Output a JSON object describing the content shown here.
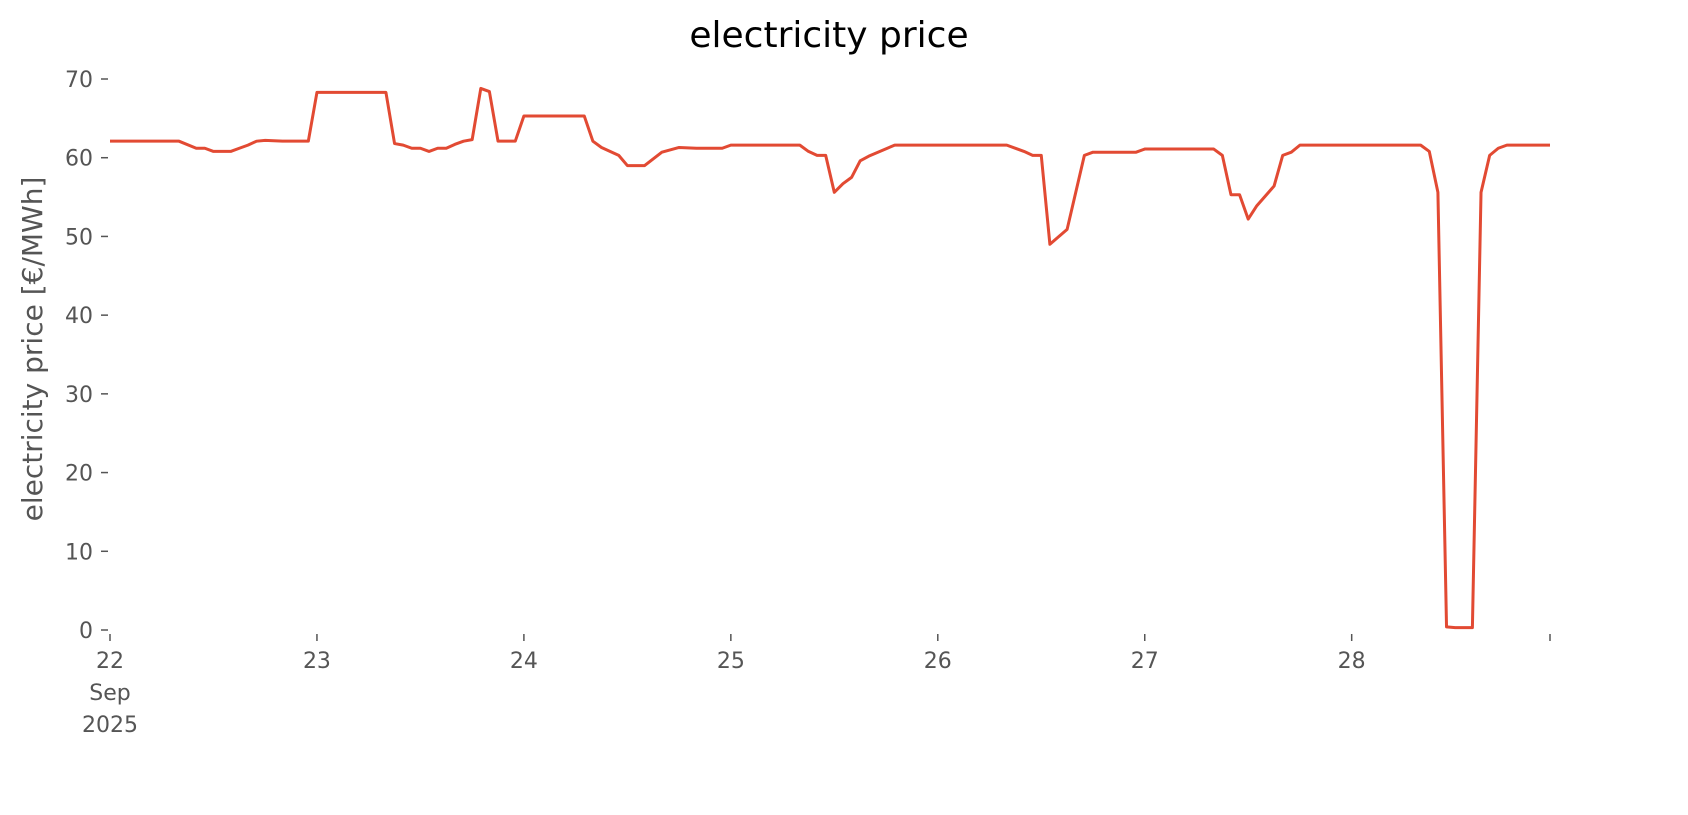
{
  "chart_data": {
    "type": "line",
    "title": "electricity price",
    "ylabel": "electricity price [€/MWh]",
    "x": [
      22,
      22.3333,
      22.4167,
      22.4583,
      22.5,
      22.5833,
      22.625,
      22.6667,
      22.7083,
      22.75,
      22.8333,
      22.9583,
      23,
      23.3333,
      23.375,
      23.4167,
      23.4583,
      23.5,
      23.5417,
      23.5833,
      23.625,
      23.6667,
      23.7083,
      23.75,
      23.7917,
      23.8333,
      23.875,
      23.9583,
      24,
      24.2917,
      24.3333,
      24.375,
      24.4583,
      24.5,
      24.5833,
      24.6667,
      24.7083,
      24.75,
      24.8333,
      24.9583,
      25,
      25.3333,
      25.375,
      25.4167,
      25.4583,
      25.5,
      25.5417,
      25.5833,
      25.625,
      25.6667,
      25.7917,
      26.3333,
      26.4167,
      26.4583,
      26.5,
      26.5417,
      26.625,
      26.7083,
      26.75,
      26.9583,
      27,
      27.3333,
      27.375,
      27.4167,
      27.4583,
      27.5,
      27.5417,
      27.625,
      27.6667,
      27.7083,
      27.75,
      28.3333,
      28.375,
      28.4167,
      28.4583,
      28.5,
      28.5833,
      28.625,
      28.6667,
      28.7083,
      28.75,
      28.9583
    ],
    "series": [
      {
        "color": "#e24a33",
        "values": [
          62.1,
          62.1,
          61.2,
          61.2,
          60.8,
          60.8,
          61.2,
          61.6,
          62.1,
          62.2,
          62.1,
          62.1,
          68.3,
          68.3,
          61.8,
          61.6,
          61.2,
          61.2,
          60.8,
          61.2,
          61.2,
          61.7,
          62.1,
          62.3,
          68.8,
          68.4,
          62.1,
          62.1,
          65.3,
          65.3,
          62.1,
          61.3,
          60.3,
          59.0,
          59.0,
          60.7,
          61.0,
          61.3,
          61.2,
          61.2,
          61.6,
          61.6,
          60.8,
          60.3,
          60.3,
          55.6,
          56.7,
          57.5,
          59.6,
          60.2,
          61.6,
          61.6,
          60.8,
          60.3,
          60.3,
          49.0,
          50.9,
          60.3,
          60.7,
          60.7,
          61.1,
          61.1,
          60.3,
          55.3,
          55.3,
          52.2,
          53.9,
          56.4,
          60.3,
          60.7,
          61.6,
          61.6,
          60.8,
          55.6,
          0.4,
          0.3,
          0.3,
          55.6,
          60.3,
          61.2,
          61.6,
          61.6
        ]
      }
    ],
    "xlim": [
      22,
      28.9583
    ],
    "xticks": [
      {
        "value": 22,
        "label": "22\nSep\n2025"
      },
      23,
      24,
      25,
      26,
      27,
      28
    ],
    "ylim": [
      0,
      70
    ],
    "yticks": [
      0,
      10,
      20,
      30,
      40,
      50,
      60,
      70
    ],
    "grid": false
  }
}
